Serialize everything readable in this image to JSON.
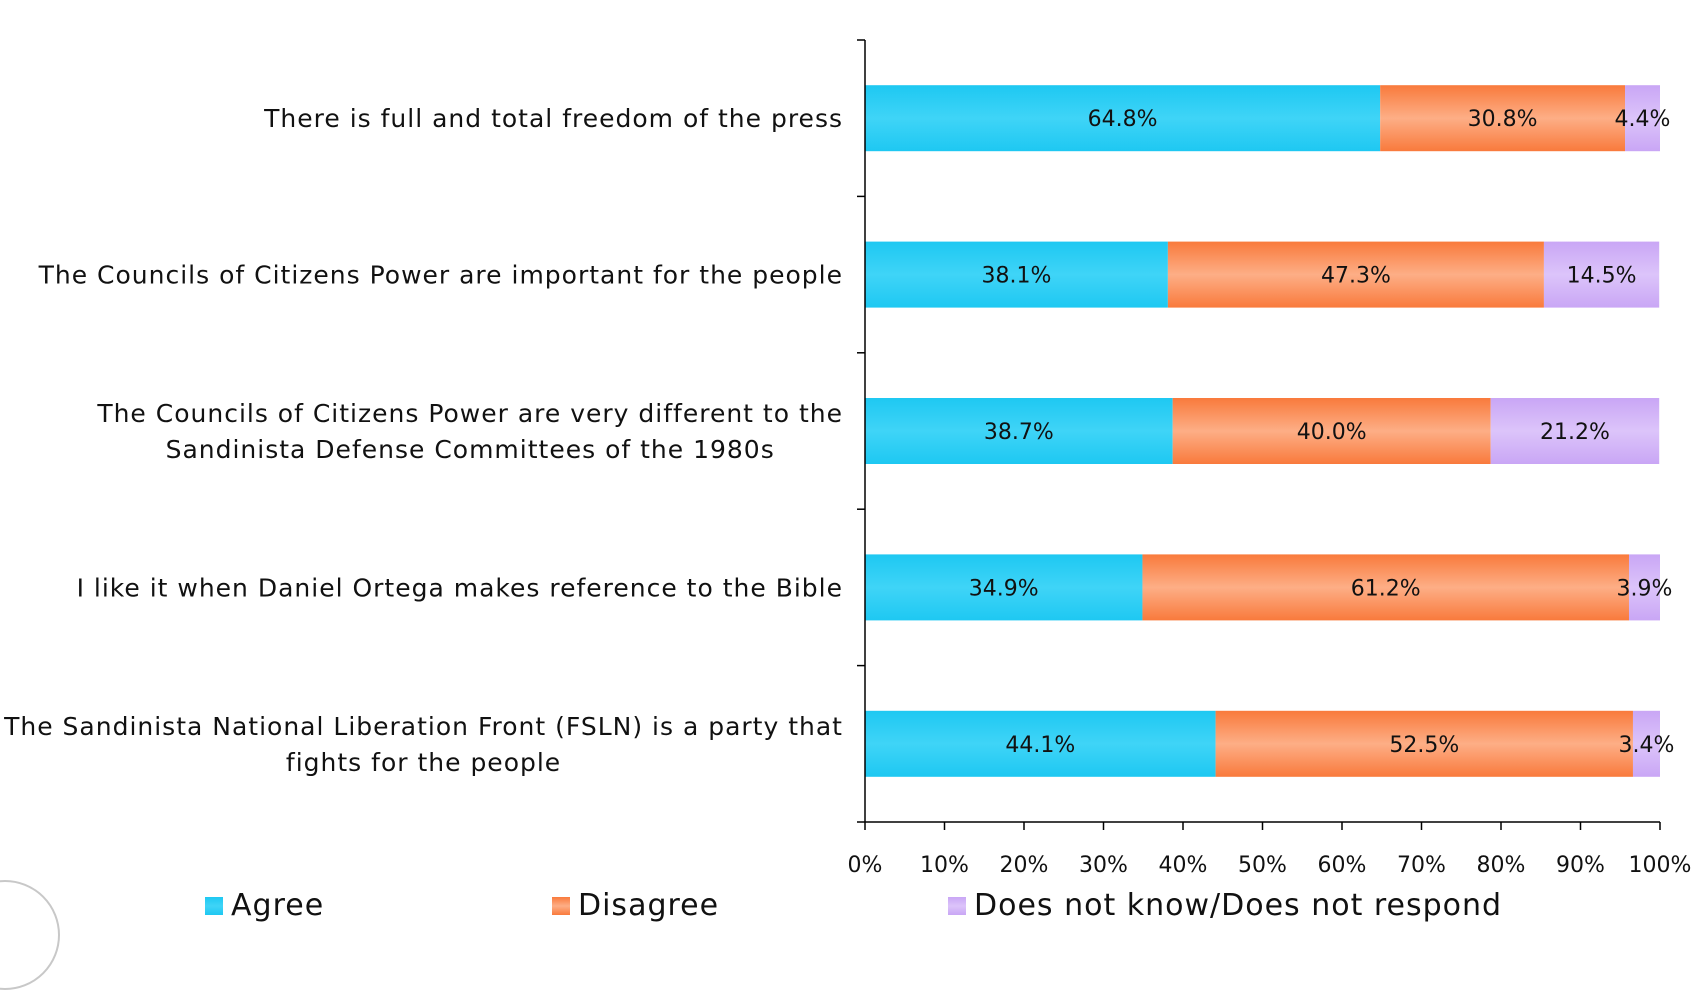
{
  "chart_data": {
    "type": "bar",
    "orientation": "horizontal",
    "stacked": true,
    "categories": [
      "There is full and total freedom of the press",
      "The Councils of Citizens Power are important for the people",
      "The Councils of Citizens Power are very different to the Sandinista Defense Committees of the 1980s",
      "I like it when Daniel Ortega makes reference to the Bible",
      "The Sandinista National Liberation Front (FSLN) is a party that fights for the people"
    ],
    "category_lines": [
      [
        "There is full and total freedom of the press"
      ],
      [
        "The Councils of Citizens Power are important for the people"
      ],
      [
        "The Councils of Citizens Power are very different to the",
        "Sandinista Defense Committees of the 1980s"
      ],
      [
        "I like it when Daniel Ortega makes reference to the Bible"
      ],
      [
        "The Sandinista National Liberation Front (FSLN) is a party that",
        "fights for the people"
      ]
    ],
    "series": [
      {
        "name": "Agree",
        "color": "#1ec8f2",
        "values": [
          64.8,
          38.1,
          38.7,
          34.9,
          44.1
        ],
        "labels": [
          "64.8%",
          "38.1%",
          "38.7%",
          "34.9%",
          "44.1%"
        ]
      },
      {
        "name": "Disagree",
        "color": "#f97a3c",
        "values": [
          30.8,
          47.3,
          40.0,
          61.2,
          52.5
        ],
        "labels": [
          "30.8%",
          "47.3%",
          "40.0%",
          "61.2%",
          "52.5%"
        ]
      },
      {
        "name": "Does not know/Does not respond",
        "color": "#c9a6f5",
        "values": [
          4.4,
          14.5,
          21.2,
          3.9,
          3.4
        ],
        "labels": [
          "4.4%",
          "14.5%",
          "21.2%",
          "3.9%",
          "3.4%"
        ]
      }
    ],
    "xlim": [
      0,
      100
    ],
    "xticks": [
      "0%",
      "10%",
      "20%",
      "30%",
      "40%",
      "50%",
      "60%",
      "70%",
      "80%",
      "90%",
      "100%"
    ],
    "grid": false,
    "legend_position": "bottom",
    "title": "",
    "xlabel": "",
    "ylabel": ""
  }
}
